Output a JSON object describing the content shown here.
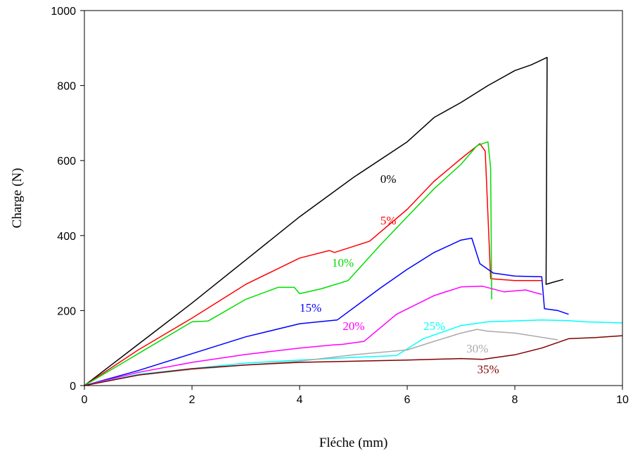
{
  "chart_data": {
    "type": "line",
    "title": "",
    "xlabel": "Fléche (mm)",
    "ylabel": "Charge (N)",
    "xlim": [
      0,
      10
    ],
    "ylim": [
      0,
      1000
    ],
    "xticks": [
      0,
      2,
      4,
      6,
      8,
      10
    ],
    "yticks": [
      0,
      200,
      400,
      600,
      800,
      1000
    ],
    "grid": false,
    "series": [
      {
        "name": "0%",
        "color": "#000000",
        "label_at": [
          5.5,
          540
        ],
        "points": [
          [
            0,
            0
          ],
          [
            0.5,
            55
          ],
          [
            1,
            110
          ],
          [
            2,
            220
          ],
          [
            3,
            335
          ],
          [
            4,
            450
          ],
          [
            5,
            555
          ],
          [
            6,
            650
          ],
          [
            6.5,
            715
          ],
          [
            7,
            755
          ],
          [
            7.5,
            800
          ],
          [
            8,
            840
          ],
          [
            8.3,
            855
          ],
          [
            8.6,
            875
          ],
          [
            8.58,
            270
          ],
          [
            8.7,
            275
          ],
          [
            8.9,
            283
          ]
        ]
      },
      {
        "name": "5%",
        "color": "#ff0000",
        "label_at": [
          5.5,
          430
        ],
        "points": [
          [
            0,
            0
          ],
          [
            1,
            95
          ],
          [
            2,
            180
          ],
          [
            3,
            270
          ],
          [
            4,
            340
          ],
          [
            4.55,
            360
          ],
          [
            4.65,
            355
          ],
          [
            5.3,
            385
          ],
          [
            6,
            470
          ],
          [
            6.5,
            545
          ],
          [
            7,
            605
          ],
          [
            7.35,
            645
          ],
          [
            7.45,
            625
          ],
          [
            7.55,
            285
          ],
          [
            8,
            280
          ],
          [
            8.5,
            280
          ]
        ]
      },
      {
        "name": "10%",
        "color": "#00dd00",
        "label_at": [
          4.6,
          317
        ],
        "points": [
          [
            0,
            0
          ],
          [
            1,
            85
          ],
          [
            2,
            170
          ],
          [
            2.3,
            172
          ],
          [
            3,
            230
          ],
          [
            3.6,
            262
          ],
          [
            3.9,
            262
          ],
          [
            4.0,
            245
          ],
          [
            4.4,
            258
          ],
          [
            4.9,
            280
          ],
          [
            5.5,
            375
          ],
          [
            6,
            450
          ],
          [
            6.5,
            525
          ],
          [
            7,
            590
          ],
          [
            7.3,
            640
          ],
          [
            7.5,
            650
          ],
          [
            7.55,
            580
          ],
          [
            7.57,
            230
          ]
        ]
      },
      {
        "name": "15%",
        "color": "#0000ff",
        "label_at": [
          4.0,
          197
        ],
        "points": [
          [
            0,
            0
          ],
          [
            1,
            40
          ],
          [
            2,
            85
          ],
          [
            3,
            130
          ],
          [
            4,
            165
          ],
          [
            4.5,
            172
          ],
          [
            4.7,
            175
          ],
          [
            5.5,
            260
          ],
          [
            6,
            310
          ],
          [
            6.5,
            355
          ],
          [
            7,
            388
          ],
          [
            7.2,
            393
          ],
          [
            7.35,
            325
          ],
          [
            7.6,
            300
          ],
          [
            8,
            292
          ],
          [
            8.5,
            290
          ],
          [
            8.55,
            205
          ],
          [
            8.8,
            200
          ],
          [
            9,
            190
          ]
        ]
      },
      {
        "name": "20%",
        "color": "#ff00ff",
        "label_at": [
          4.8,
          148
        ],
        "points": [
          [
            0,
            0
          ],
          [
            1,
            35
          ],
          [
            2,
            62
          ],
          [
            3,
            83
          ],
          [
            4,
            100
          ],
          [
            4.6,
            108
          ],
          [
            4.8,
            110
          ],
          [
            5.2,
            118
          ],
          [
            5.8,
            190
          ],
          [
            6.5,
            240
          ],
          [
            7,
            263
          ],
          [
            7.4,
            265
          ],
          [
            7.8,
            250
          ],
          [
            8.2,
            255
          ],
          [
            8.5,
            243
          ]
        ]
      },
      {
        "name": "25%",
        "color": "#00ffff",
        "label_at": [
          6.3,
          148
        ],
        "points": [
          [
            0,
            0
          ],
          [
            1,
            30
          ],
          [
            2,
            45
          ],
          [
            3,
            60
          ],
          [
            4,
            68
          ],
          [
            5,
            75
          ],
          [
            5.8,
            80
          ],
          [
            6.3,
            125
          ],
          [
            7,
            160
          ],
          [
            7.5,
            170
          ],
          [
            8.5,
            175
          ],
          [
            9,
            173
          ],
          [
            9.3,
            170
          ],
          [
            10,
            167
          ]
        ]
      },
      {
        "name": "30%",
        "color": "#aaaaaa",
        "label_at": [
          7.1,
          88
        ],
        "points": [
          [
            0,
            0
          ],
          [
            1,
            28
          ],
          [
            2,
            43
          ],
          [
            3,
            55
          ],
          [
            4,
            65
          ],
          [
            5,
            82
          ],
          [
            6,
            95
          ],
          [
            6.5,
            118
          ],
          [
            7,
            140
          ],
          [
            7.3,
            150
          ],
          [
            7.5,
            145
          ],
          [
            8,
            140
          ],
          [
            8.8,
            122
          ]
        ]
      },
      {
        "name": "35%",
        "color": "#800000",
        "label_at": [
          7.3,
          33
        ],
        "points": [
          [
            0,
            0
          ],
          [
            1,
            28
          ],
          [
            2,
            45
          ],
          [
            3,
            55
          ],
          [
            4,
            62
          ],
          [
            5,
            65
          ],
          [
            6,
            68
          ],
          [
            7,
            72
          ],
          [
            7.4,
            70
          ],
          [
            8,
            82
          ],
          [
            8.5,
            100
          ],
          [
            9,
            125
          ],
          [
            9.5,
            128
          ],
          [
            10,
            133
          ]
        ]
      }
    ]
  }
}
